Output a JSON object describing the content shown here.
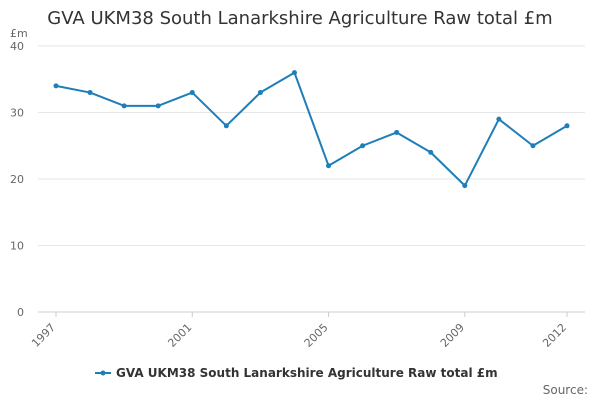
{
  "chart_data": {
    "type": "line",
    "title": "GVA UKM38 South Lanarkshire Agriculture Raw total £m",
    "ylabel": "£m",
    "xlabel": "",
    "x": [
      1997,
      1998,
      1999,
      2000,
      2001,
      2002,
      2003,
      2004,
      2005,
      2006,
      2007,
      2008,
      2009,
      2010,
      2011,
      2012
    ],
    "x_tick_labels": [
      "1997",
      "2001",
      "2005",
      "2009",
      "2012"
    ],
    "ylim": [
      0,
      40
    ],
    "y_ticks": [
      0,
      10,
      20,
      30,
      40
    ],
    "grid": true,
    "legend_position": "bottom",
    "series": [
      {
        "name": "GVA UKM38 South Lanarkshire Agriculture Raw total £m",
        "color": "#1f7eb8",
        "values": [
          34,
          33,
          31,
          31,
          33,
          28,
          33,
          36,
          22,
          25,
          27,
          24,
          19,
          29,
          25,
          28
        ]
      }
    ],
    "credit": "Source:"
  }
}
